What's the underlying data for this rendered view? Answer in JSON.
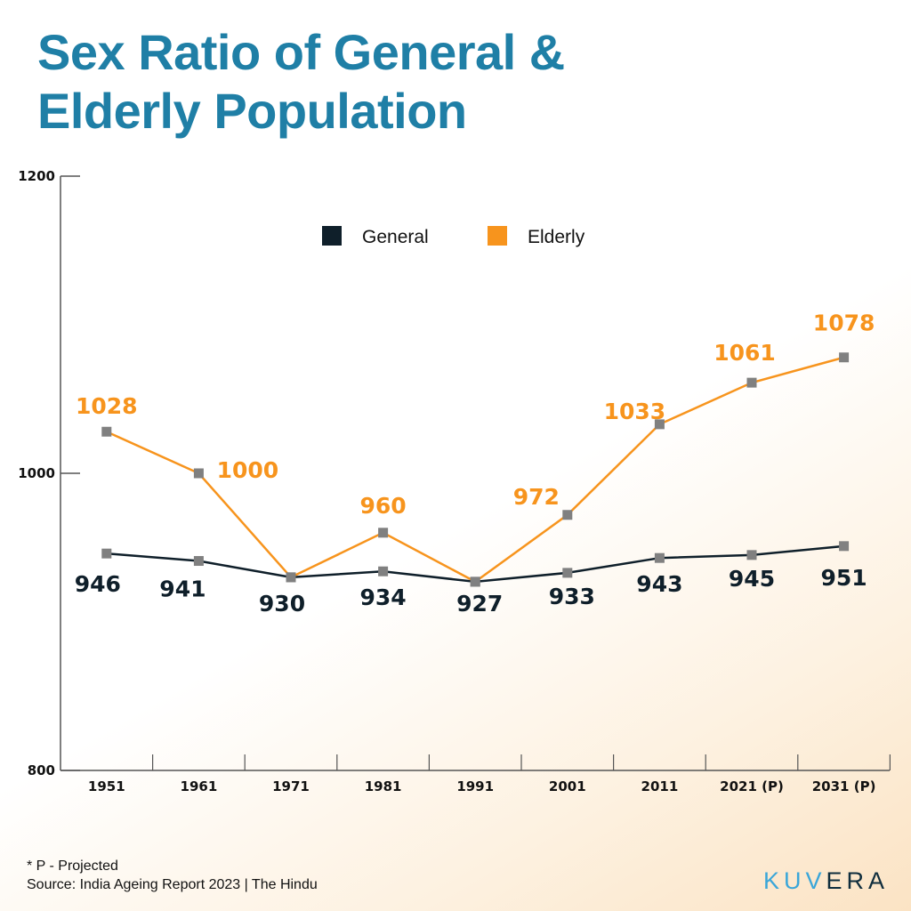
{
  "chart_data": {
    "type": "line",
    "title": "Sex Ratio of General & Elderly Population",
    "categories": [
      "1951",
      "1961",
      "1971",
      "1981",
      "1991",
      "2001",
      "2011",
      "2021 (P)",
      "2031 (P)"
    ],
    "ylim": [
      800,
      1200
    ],
    "yticks": [
      "800",
      "1000",
      "1200"
    ],
    "grid": false,
    "legend_position": "top-center",
    "series": [
      {
        "name": "General",
        "color": "#0f1f2a",
        "label_color": "#0f1f2a",
        "values": [
          946,
          941,
          930,
          934,
          927,
          933,
          943,
          945,
          951
        ]
      },
      {
        "name": "Elderly",
        "color": "#f7941d",
        "label_color": "#f7941d",
        "values": [
          1028,
          1000,
          930,
          960,
          927,
          972,
          1033,
          1061,
          1078
        ]
      }
    ],
    "marker_color": "#808080"
  },
  "footnote": "*  P - Projected",
  "source": "Source: India Ageing Report 2023 | The Hindu",
  "logo": {
    "text": "KUVERA",
    "colors": [
      "#3aa6d9",
      "#0f2d3d"
    ]
  }
}
